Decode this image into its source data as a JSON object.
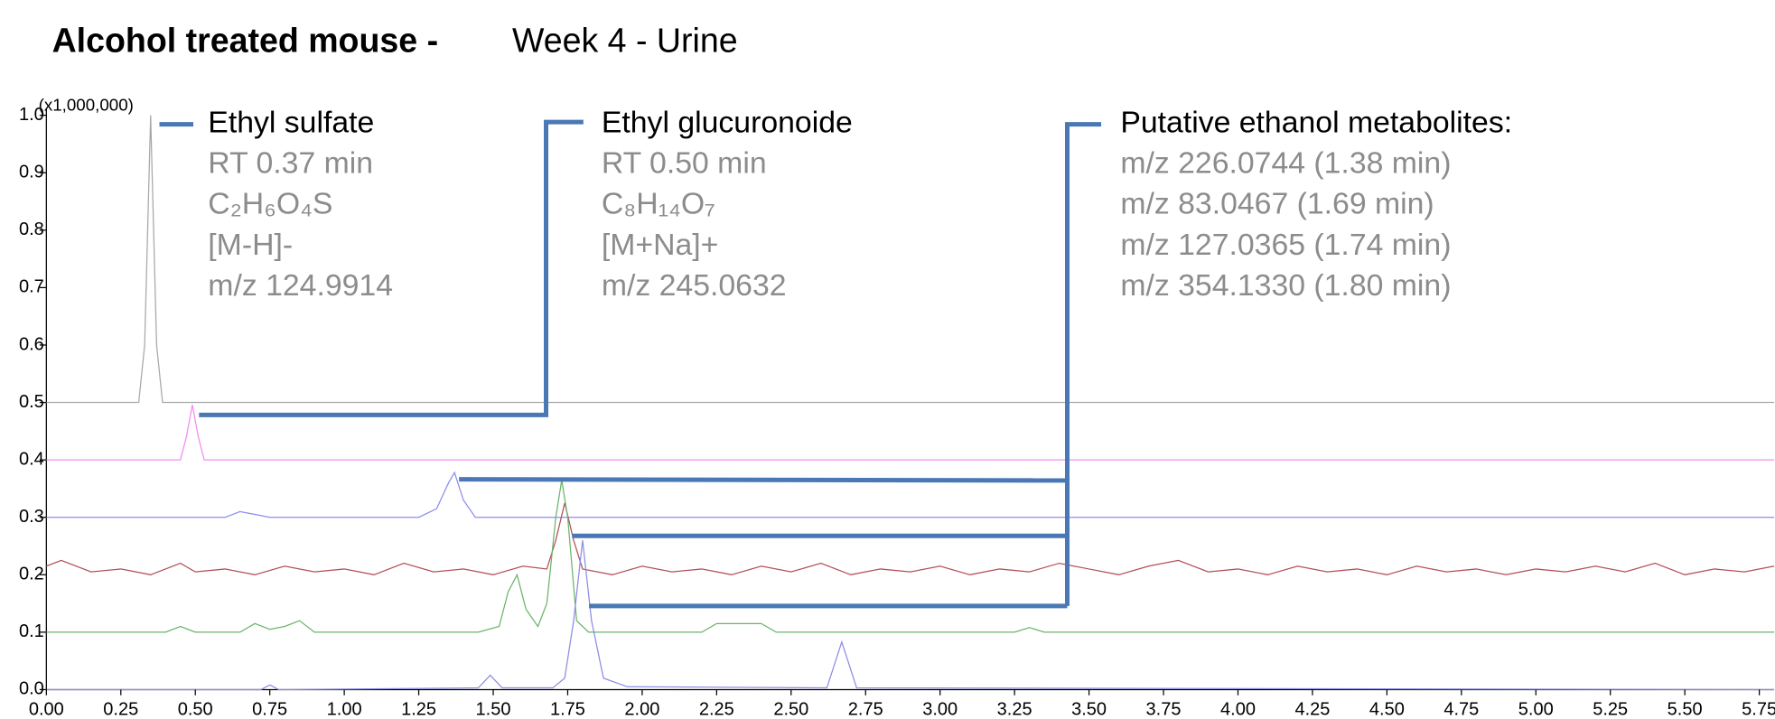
{
  "chart_data": {
    "type": "line",
    "title": [
      "Alcohol treated mouse -",
      "Week 4 - Urine"
    ],
    "y_multiplier": "(x1,000,000)",
    "xlim": [
      0,
      5.8
    ],
    "ylim": [
      0,
      1.0
    ],
    "xticks": [
      {
        "value": 0,
        "label": "0.00"
      },
      {
        "value": 0.25,
        "label": "0.25"
      },
      {
        "value": 0.5,
        "label": "0.50"
      },
      {
        "value": 0.75,
        "label": "0.75"
      },
      {
        "value": 1,
        "label": "1.00"
      },
      {
        "value": 1.25,
        "label": "1.25"
      },
      {
        "value": 1.5,
        "label": "1.50"
      },
      {
        "value": 1.75,
        "label": "1.75"
      },
      {
        "value": 2,
        "label": "2.00"
      },
      {
        "value": 2.25,
        "label": "2.25"
      },
      {
        "value": 2.5,
        "label": "2.50"
      },
      {
        "value": 2.75,
        "label": "2.75"
      },
      {
        "value": 3,
        "label": "3.00"
      },
      {
        "value": 3.25,
        "label": "3.25"
      },
      {
        "value": 3.5,
        "label": "3.50"
      },
      {
        "value": 3.75,
        "label": "3.75"
      },
      {
        "value": 4,
        "label": "4.00"
      },
      {
        "value": 4.25,
        "label": "4.25"
      },
      {
        "value": 4.5,
        "label": "4.50"
      },
      {
        "value": 4.75,
        "label": "4.75"
      },
      {
        "value": 5,
        "label": "5.00"
      },
      {
        "value": 5.25,
        "label": "5.25"
      },
      {
        "value": 5.5,
        "label": "5.50"
      },
      {
        "value": 5.75,
        "label": "5.75"
      }
    ],
    "yticks": [
      {
        "value": 0,
        "label": "0.0"
      },
      {
        "value": 0.1,
        "label": "0.1"
      },
      {
        "value": 0.2,
        "label": "0.2"
      },
      {
        "value": 0.3,
        "label": "0.3"
      },
      {
        "value": 0.4,
        "label": "0.4"
      },
      {
        "value": 0.5,
        "label": "0.5"
      },
      {
        "value": 0.6,
        "label": "0.6"
      },
      {
        "value": 0.7,
        "label": "0.7"
      },
      {
        "value": 0.8,
        "label": "0.8"
      },
      {
        "value": 0.9,
        "label": "0.9"
      },
      {
        "value": 1,
        "label": "1.0"
      }
    ],
    "series": [
      {
        "color": "#a8a8a8",
        "x": [
          0,
          0.31,
          0.33,
          0.35,
          0.37,
          0.39,
          5.8
        ],
        "values": [
          0.5,
          0.5,
          0.6,
          1.0,
          0.6,
          0.5,
          0.5
        ]
      },
      {
        "color": "#f08cf0",
        "x": [
          0,
          0.45,
          0.47,
          0.49,
          0.51,
          0.53,
          5.8
        ],
        "values": [
          0.4,
          0.4,
          0.44,
          0.496,
          0.44,
          0.4,
          0.4
        ]
      },
      {
        "color": "#8c8cf0",
        "x": [
          0,
          0.6,
          0.65,
          0.7,
          0.75,
          1.25,
          1.31,
          1.35,
          1.37,
          1.4,
          1.44,
          5.8
        ],
        "values": [
          0.3,
          0.3,
          0.31,
          0.305,
          0.3,
          0.3,
          0.315,
          0.36,
          0.378,
          0.33,
          0.3,
          0.3
        ]
      },
      {
        "color": "#b4505a",
        "x": [
          0,
          0.05,
          0.15,
          0.25,
          0.35,
          0.45,
          0.5,
          0.6,
          0.7,
          0.8,
          0.9,
          1.0,
          1.1,
          1.2,
          1.3,
          1.4,
          1.5,
          1.6,
          1.68,
          1.71,
          1.74,
          1.77,
          1.8,
          1.9,
          2.0,
          2.1,
          2.2,
          2.3,
          2.4,
          2.5,
          2.6,
          2.7,
          2.8,
          2.9,
          3.0,
          3.1,
          3.2,
          3.3,
          3.4,
          3.5,
          3.6,
          3.7,
          3.8,
          3.9,
          4.0,
          4.1,
          4.2,
          4.3,
          4.4,
          4.5,
          4.6,
          4.7,
          4.8,
          4.9,
          5.0,
          5.1,
          5.2,
          5.3,
          5.4,
          5.5,
          5.6,
          5.7,
          5.8
        ],
        "values": [
          0.215,
          0.225,
          0.205,
          0.21,
          0.2,
          0.22,
          0.205,
          0.21,
          0.2,
          0.215,
          0.205,
          0.21,
          0.2,
          0.22,
          0.205,
          0.21,
          0.2,
          0.215,
          0.21,
          0.26,
          0.325,
          0.26,
          0.21,
          0.2,
          0.215,
          0.205,
          0.21,
          0.2,
          0.215,
          0.205,
          0.22,
          0.2,
          0.21,
          0.205,
          0.215,
          0.2,
          0.21,
          0.205,
          0.22,
          0.21,
          0.2,
          0.215,
          0.225,
          0.205,
          0.21,
          0.2,
          0.215,
          0.205,
          0.21,
          0.2,
          0.215,
          0.205,
          0.21,
          0.2,
          0.21,
          0.205,
          0.215,
          0.205,
          0.22,
          0.2,
          0.21,
          0.205,
          0.215
        ]
      },
      {
        "color": "#6cb46c",
        "x": [
          0,
          0.4,
          0.45,
          0.5,
          0.65,
          0.7,
          0.75,
          0.8,
          0.85,
          0.9,
          1.45,
          1.52,
          1.55,
          1.58,
          1.61,
          1.65,
          1.68,
          1.71,
          1.73,
          1.75,
          1.78,
          1.82,
          2.2,
          2.25,
          2.4,
          2.45,
          3.25,
          3.3,
          3.35,
          5.8
        ],
        "values": [
          0.1,
          0.1,
          0.11,
          0.1,
          0.1,
          0.115,
          0.105,
          0.11,
          0.12,
          0.1,
          0.1,
          0.11,
          0.17,
          0.2,
          0.14,
          0.11,
          0.15,
          0.3,
          0.365,
          0.3,
          0.12,
          0.1,
          0.1,
          0.115,
          0.115,
          0.1,
          0.1,
          0.108,
          0.1,
          0.1
        ]
      },
      {
        "color": "#8c8ce6",
        "x": [
          0,
          0.72,
          0.75,
          0.78,
          1.45,
          1.49,
          1.53,
          1.7,
          1.74,
          1.77,
          1.8,
          1.83,
          1.87,
          1.95,
          2.62,
          2.67,
          2.72,
          5.8
        ],
        "values": [
          0,
          0,
          0.008,
          0,
          0.003,
          0.025,
          0.003,
          0.003,
          0.02,
          0.12,
          0.26,
          0.12,
          0.02,
          0.005,
          0.003,
          0.083,
          0.003,
          0
        ]
      }
    ],
    "annotations": [
      {
        "head": "Ethyl sulfate",
        "lines": [
          "RT 0.37 min",
          "C₂H₆O₄S",
          "[M-H]-",
          "m/z 124.9914"
        ]
      },
      {
        "head": "Ethyl glucuronoide",
        "lines": [
          "RT 0.50 min",
          "C₈H₁₄O₇",
          "[M+Na]+",
          "m/z 245.0632"
        ]
      },
      {
        "head": "Putative ethanol metabolites:",
        "lines": [
          "m/z 226.0744 (1.38 min)",
          "m/z 83.0467 (1.69 min)",
          "m/z 127.0365 (1.74 min)",
          "m/z 354.1330 (1.80 min)"
        ]
      }
    ]
  }
}
